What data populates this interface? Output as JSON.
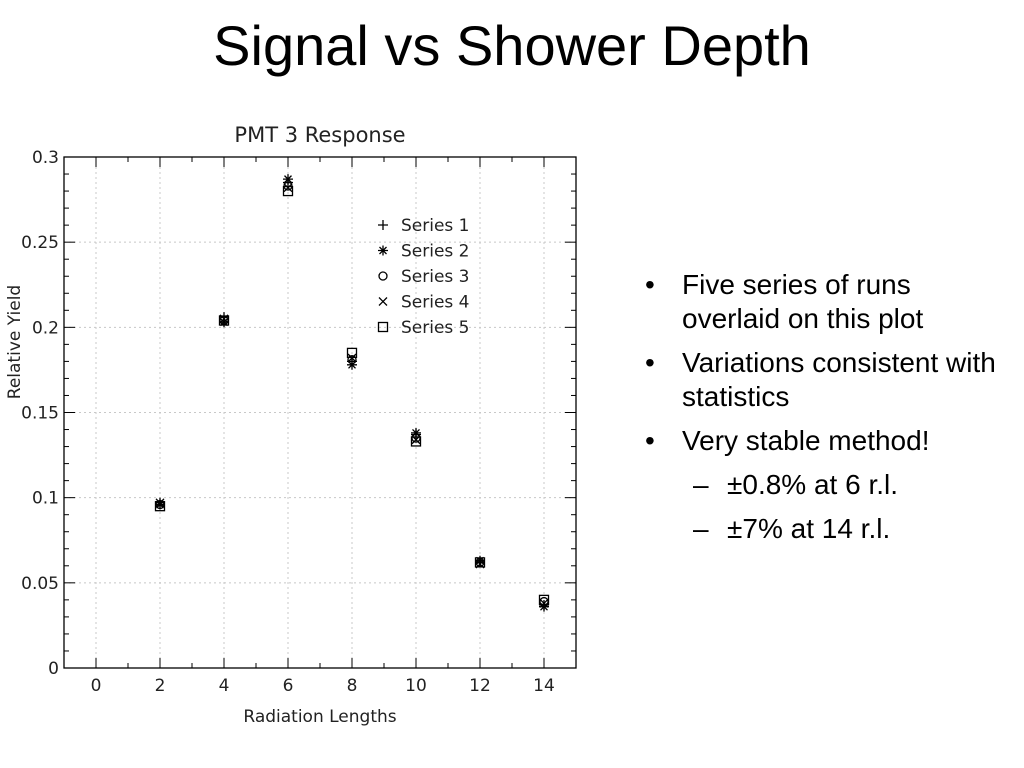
{
  "slide": {
    "title": "Signal vs Shower Depth",
    "bullets": [
      {
        "text": "Five series of runs overlaid on this plot",
        "level": 1
      },
      {
        "text": "Variations consistent with statistics",
        "level": 1
      },
      {
        "text": "Very stable method!",
        "level": 1
      },
      {
        "text": "±0.8% at 6 r.l.",
        "level": 2
      },
      {
        "text": "±7% at 14 r.l.",
        "level": 2
      }
    ]
  },
  "chart_data": {
    "type": "scatter",
    "title": "PMT 3 Response",
    "xlabel": "Radiation Lengths",
    "ylabel": "Relative Yield",
    "xlim": [
      -1,
      15
    ],
    "ylim": [
      0,
      0.3
    ],
    "xticks": [
      0,
      2,
      4,
      6,
      8,
      10,
      12,
      14
    ],
    "xtick_labels": [
      "0",
      "2",
      "4",
      "6",
      "8",
      "10",
      "12",
      "14"
    ],
    "yticks": [
      0,
      0.05,
      0.1,
      0.15,
      0.2,
      0.25,
      0.3
    ],
    "ytick_labels": [
      "0",
      "0.05",
      "0.1",
      "0.15",
      "0.2",
      "0.25",
      "0.3"
    ],
    "grid": true,
    "legend_position": "top-right",
    "x": [
      2,
      4,
      6,
      8,
      10,
      12,
      14
    ],
    "series": [
      {
        "name": "Series 1",
        "marker": "plus",
        "values": [
          0.097,
          0.206,
          0.285,
          0.18,
          0.137,
          0.062,
          0.037
        ]
      },
      {
        "name": "Series 2",
        "marker": "star",
        "values": [
          0.096,
          0.203,
          0.287,
          0.178,
          0.138,
          0.063,
          0.036
        ]
      },
      {
        "name": "Series 3",
        "marker": "circle",
        "values": [
          0.096,
          0.204,
          0.283,
          0.181,
          0.135,
          0.062,
          0.039
        ]
      },
      {
        "name": "Series 4",
        "marker": "cross",
        "values": [
          0.097,
          0.205,
          0.282,
          0.182,
          0.134,
          0.061,
          0.038
        ]
      },
      {
        "name": "Series 5",
        "marker": "square",
        "values": [
          0.095,
          0.204,
          0.28,
          0.185,
          0.133,
          0.062,
          0.04
        ]
      }
    ]
  }
}
